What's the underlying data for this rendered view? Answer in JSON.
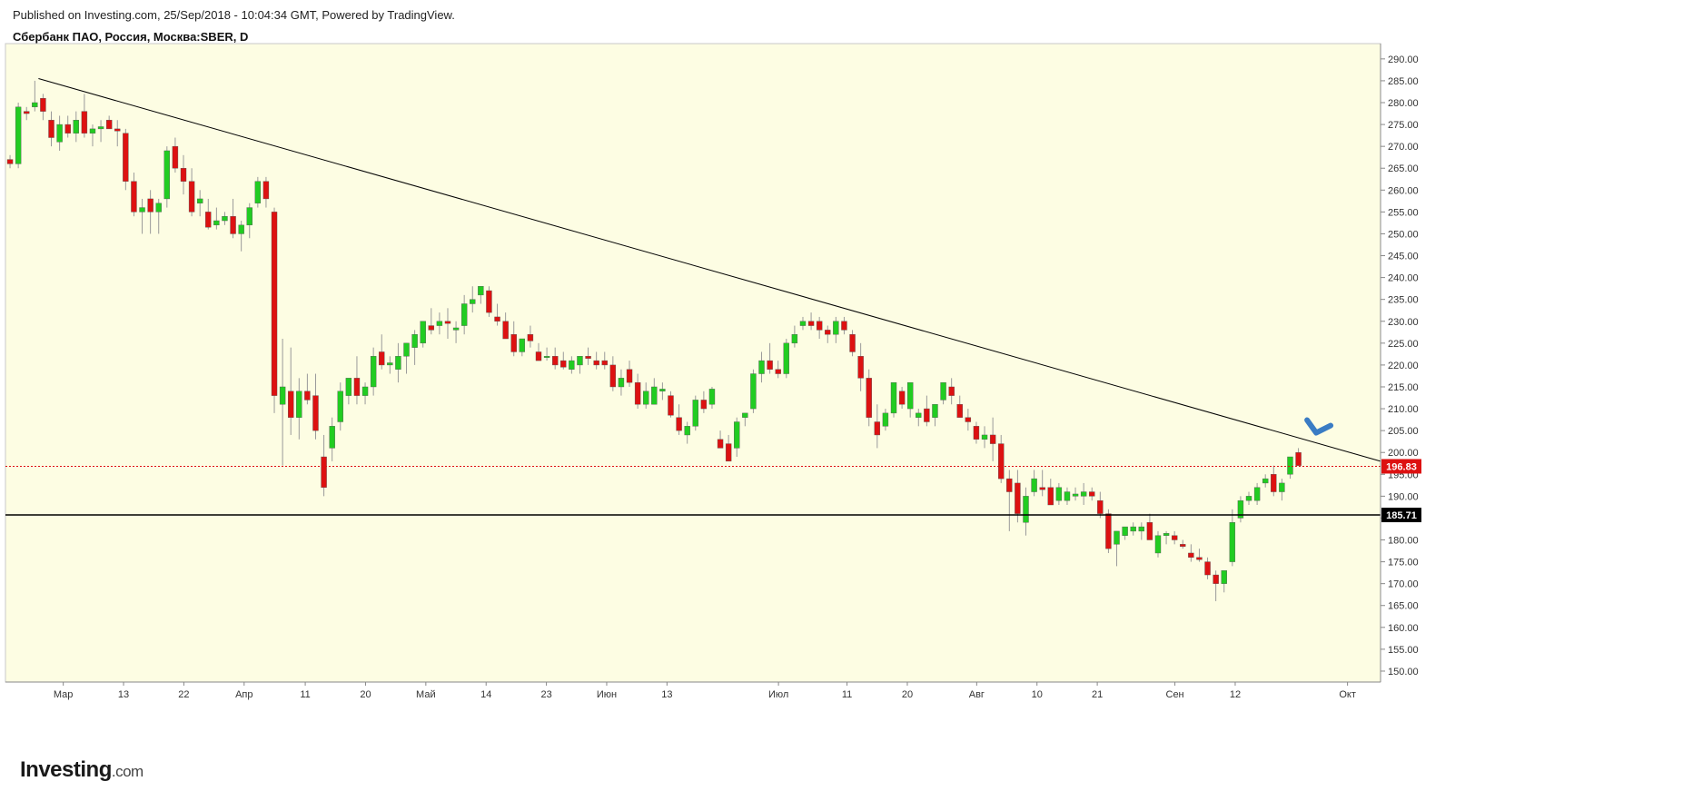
{
  "header": {
    "published": "Published on Investing.com, 25/Sep/2018 - 10:04:34 GMT, Powered by TradingView.",
    "instrument": "Сбербанк ПАО, Россия, Москва:SBER, D"
  },
  "logo": {
    "main": "Investing",
    "suffix": ".com"
  },
  "colors": {
    "background": "#fdfde3",
    "up": "#21cc21",
    "down": "#dd1111",
    "wick": "#9a9a9a",
    "trendline": "#000000",
    "current_price_line": "#dd1111",
    "support_line": "#000000",
    "arrow": "#3a7cc4"
  },
  "chart_data": {
    "type": "candlestick",
    "title": "Сбербанк ПАО, Россия, Москва:SBER, D",
    "ylim": [
      147.5,
      293.5
    ],
    "yticks": [
      150,
      155,
      160,
      165,
      170,
      175,
      180,
      185,
      190,
      195,
      200,
      205,
      210,
      215,
      220,
      225,
      230,
      235,
      240,
      245,
      250,
      255,
      260,
      265,
      270,
      275,
      280,
      285,
      290
    ],
    "ytick_labels": [
      "150.00",
      "155.00",
      "160.00",
      "165.00",
      "170.00",
      "175.00",
      "180.00",
      "185.00",
      "190.00",
      "195.00",
      "200.00",
      "205.00",
      "210.00",
      "215.00",
      "220.00",
      "225.00",
      "230.00",
      "235.00",
      "240.00",
      "245.00",
      "250.00",
      "255.00",
      "260.00",
      "265.00",
      "270.00",
      "275.00",
      "280.00",
      "285.00",
      "290.00"
    ],
    "xlim": [
      -0.5,
      166
    ],
    "xticks": [
      {
        "label": "Мар",
        "x": 6.5
      },
      {
        "label": "13",
        "x": 13.8
      },
      {
        "label": "22",
        "x": 21.1
      },
      {
        "label": "Апр",
        "x": 28.4
      },
      {
        "label": "11",
        "x": 35.8
      },
      {
        "label": "20",
        "x": 43.1
      },
      {
        "label": "Май",
        "x": 50.4
      },
      {
        "label": "14",
        "x": 57.7
      },
      {
        "label": "23",
        "x": 65.0
      },
      {
        "label": "Июн",
        "x": 72.3
      },
      {
        "label": "13",
        "x": 79.6
      },
      {
        "label": "Июл",
        "x": 93.1
      },
      {
        "label": "11",
        "x": 101.4
      },
      {
        "label": "20",
        "x": 108.7
      },
      {
        "label": "Авг",
        "x": 117.1
      },
      {
        "label": "10",
        "x": 124.4
      },
      {
        "label": "21",
        "x": 131.7
      },
      {
        "label": "Сен",
        "x": 141.1
      },
      {
        "label": "12",
        "x": 148.4
      },
      {
        "label": "Окт",
        "x": 162.0
      }
    ],
    "trendline": [
      [
        3.5,
        285.5
      ],
      [
        166,
        198.0
      ]
    ],
    "current_price": 196.83,
    "current_price_label": "196.83",
    "support": 185.71,
    "support_label": "185.71",
    "arrow_annotation": {
      "x": 158.2,
      "y": 204.5
    },
    "candles": [
      {
        "o": 267,
        "h": 268,
        "l": 265,
        "c": 266
      },
      {
        "o": 266,
        "h": 280,
        "l": 265,
        "c": 279
      },
      {
        "o": 278,
        "h": 279,
        "l": 276,
        "c": 277.5
      },
      {
        "o": 279,
        "h": 285,
        "l": 278,
        "c": 280
      },
      {
        "o": 281,
        "h": 282,
        "l": 276,
        "c": 278
      },
      {
        "o": 276,
        "h": 278,
        "l": 270,
        "c": 272
      },
      {
        "o": 271,
        "h": 277,
        "l": 269,
        "c": 275
      },
      {
        "o": 275,
        "h": 277,
        "l": 272,
        "c": 273
      },
      {
        "o": 273,
        "h": 278,
        "l": 271,
        "c": 276
      },
      {
        "o": 278,
        "h": 282,
        "l": 272,
        "c": 273
      },
      {
        "o": 273,
        "h": 275,
        "l": 270,
        "c": 274
      },
      {
        "o": 274,
        "h": 276,
        "l": 271,
        "c": 274.5
      },
      {
        "o": 276,
        "h": 277,
        "l": 274,
        "c": 274
      },
      {
        "o": 274,
        "h": 276,
        "l": 270,
        "c": 273.5
      },
      {
        "o": 273,
        "h": 274,
        "l": 260,
        "c": 262
      },
      {
        "o": 262,
        "h": 264,
        "l": 254,
        "c": 255
      },
      {
        "o": 255,
        "h": 258,
        "l": 250,
        "c": 256
      },
      {
        "o": 258,
        "h": 260,
        "l": 250,
        "c": 255
      },
      {
        "o": 255,
        "h": 258,
        "l": 250,
        "c": 257
      },
      {
        "o": 258,
        "h": 270,
        "l": 256,
        "c": 269
      },
      {
        "o": 270,
        "h": 272,
        "l": 264,
        "c": 265
      },
      {
        "o": 265,
        "h": 268,
        "l": 259,
        "c": 262
      },
      {
        "o": 262,
        "h": 265,
        "l": 254,
        "c": 255
      },
      {
        "o": 257,
        "h": 260,
        "l": 254,
        "c": 258
      },
      {
        "o": 255,
        "h": 258,
        "l": 251,
        "c": 251.5
      },
      {
        "o": 252,
        "h": 256,
        "l": 251,
        "c": 253
      },
      {
        "o": 253,
        "h": 255,
        "l": 252,
        "c": 254
      },
      {
        "o": 254,
        "h": 258,
        "l": 249,
        "c": 250
      },
      {
        "o": 250,
        "h": 253,
        "l": 246,
        "c": 252
      },
      {
        "o": 252,
        "h": 257,
        "l": 249,
        "c": 256
      },
      {
        "o": 257,
        "h": 263,
        "l": 256,
        "c": 262
      },
      {
        "o": 262,
        "h": 263,
        "l": 256,
        "c": 258
      },
      {
        "o": 255,
        "h": 256,
        "l": 209,
        "c": 213
      },
      {
        "o": 211,
        "h": 226,
        "l": 197,
        "c": 215
      },
      {
        "o": 214,
        "h": 224,
        "l": 204,
        "c": 208
      },
      {
        "o": 208,
        "h": 217,
        "l": 203,
        "c": 214
      },
      {
        "o": 214,
        "h": 218,
        "l": 211,
        "c": 212
      },
      {
        "o": 213,
        "h": 218,
        "l": 203,
        "c": 205
      },
      {
        "o": 199,
        "h": 204,
        "l": 190,
        "c": 192
      },
      {
        "o": 201,
        "h": 208,
        "l": 198,
        "c": 206
      },
      {
        "o": 207,
        "h": 216,
        "l": 205,
        "c": 214
      },
      {
        "o": 213,
        "h": 216,
        "l": 211,
        "c": 217
      },
      {
        "o": 217,
        "h": 222,
        "l": 211,
        "c": 213
      },
      {
        "o": 213,
        "h": 216,
        "l": 211,
        "c": 215
      },
      {
        "o": 215,
        "h": 224,
        "l": 213,
        "c": 222
      },
      {
        "o": 223,
        "h": 227,
        "l": 219,
        "c": 220
      },
      {
        "o": 220,
        "h": 222,
        "l": 218,
        "c": 220.5
      },
      {
        "o": 219,
        "h": 225,
        "l": 216,
        "c": 222
      },
      {
        "o": 222,
        "h": 225,
        "l": 218,
        "c": 225
      },
      {
        "o": 224,
        "h": 228,
        "l": 220,
        "c": 227
      },
      {
        "o": 225,
        "h": 230,
        "l": 224,
        "c": 230
      },
      {
        "o": 229,
        "h": 233,
        "l": 227,
        "c": 228
      },
      {
        "o": 229,
        "h": 232,
        "l": 227,
        "c": 230
      },
      {
        "o": 230,
        "h": 233,
        "l": 226,
        "c": 229.5
      },
      {
        "o": 228,
        "h": 230,
        "l": 225,
        "c": 228.5
      },
      {
        "o": 229,
        "h": 236,
        "l": 227,
        "c": 234
      },
      {
        "o": 234,
        "h": 238,
        "l": 232,
        "c": 235
      },
      {
        "o": 236,
        "h": 238,
        "l": 234,
        "c": 238
      },
      {
        "o": 237,
        "h": 238,
        "l": 231,
        "c": 232
      },
      {
        "o": 231,
        "h": 234,
        "l": 229,
        "c": 230
      },
      {
        "o": 230,
        "h": 232,
        "l": 226,
        "c": 226
      },
      {
        "o": 227,
        "h": 230,
        "l": 222,
        "c": 223
      },
      {
        "o": 223,
        "h": 226,
        "l": 222,
        "c": 226
      },
      {
        "o": 227,
        "h": 229,
        "l": 224,
        "c": 225.5
      },
      {
        "o": 223,
        "h": 225,
        "l": 221,
        "c": 221
      },
      {
        "o": 222,
        "h": 224,
        "l": 221,
        "c": 222
      },
      {
        "o": 222,
        "h": 224,
        "l": 219,
        "c": 220
      },
      {
        "o": 221,
        "h": 223,
        "l": 219,
        "c": 219.5
      },
      {
        "o": 219,
        "h": 222,
        "l": 218,
        "c": 221
      },
      {
        "o": 220,
        "h": 222,
        "l": 218,
        "c": 222
      },
      {
        "o": 222,
        "h": 224,
        "l": 220,
        "c": 221.5
      },
      {
        "o": 221,
        "h": 223,
        "l": 219,
        "c": 220
      },
      {
        "o": 221,
        "h": 223,
        "l": 219,
        "c": 220
      },
      {
        "o": 220,
        "h": 222,
        "l": 214,
        "c": 215
      },
      {
        "o": 215,
        "h": 219,
        "l": 213,
        "c": 217
      },
      {
        "o": 219,
        "h": 221,
        "l": 215,
        "c": 216
      },
      {
        "o": 216,
        "h": 218,
        "l": 210,
        "c": 211
      },
      {
        "o": 211,
        "h": 216,
        "l": 210,
        "c": 214
      },
      {
        "o": 211,
        "h": 217,
        "l": 211,
        "c": 215
      },
      {
        "o": 214,
        "h": 216,
        "l": 212,
        "c": 214.5
      },
      {
        "o": 213,
        "h": 214,
        "l": 208,
        "c": 208.5
      },
      {
        "o": 208,
        "h": 211,
        "l": 204,
        "c": 205
      },
      {
        "o": 204,
        "h": 207,
        "l": 202,
        "c": 206
      },
      {
        "o": 206,
        "h": 213,
        "l": 205,
        "c": 212
      },
      {
        "o": 212,
        "h": 214,
        "l": 209,
        "c": 210
      },
      {
        "o": 211,
        "h": 215,
        "l": 210,
        "c": 214.5
      },
      {
        "o": 203,
        "h": 205,
        "l": 201,
        "c": 201
      },
      {
        "o": 202,
        "h": 204,
        "l": 198,
        "c": 198
      },
      {
        "o": 201,
        "h": 208,
        "l": 199,
        "c": 207
      },
      {
        "o": 208,
        "h": 209,
        "l": 206,
        "c": 209
      },
      {
        "o": 210,
        "h": 219,
        "l": 209,
        "c": 218
      },
      {
        "o": 218,
        "h": 223,
        "l": 216,
        "c": 221
      },
      {
        "o": 221,
        "h": 225,
        "l": 218,
        "c": 219
      },
      {
        "o": 219,
        "h": 221,
        "l": 217,
        "c": 218
      },
      {
        "o": 218,
        "h": 226,
        "l": 217,
        "c": 225
      },
      {
        "o": 225,
        "h": 229,
        "l": 224,
        "c": 227
      },
      {
        "o": 229,
        "h": 231,
        "l": 228,
        "c": 230
      },
      {
        "o": 230,
        "h": 232,
        "l": 228,
        "c": 229
      },
      {
        "o": 230,
        "h": 231,
        "l": 226,
        "c": 228
      },
      {
        "o": 228,
        "h": 229,
        "l": 225,
        "c": 227
      },
      {
        "o": 227,
        "h": 231,
        "l": 225,
        "c": 230
      },
      {
        "o": 230,
        "h": 231,
        "l": 227,
        "c": 228
      },
      {
        "o": 227,
        "h": 228,
        "l": 222,
        "c": 223
      },
      {
        "o": 222,
        "h": 225,
        "l": 214,
        "c": 217
      },
      {
        "o": 217,
        "h": 219,
        "l": 206,
        "c": 208
      },
      {
        "o": 207,
        "h": 211,
        "l": 201,
        "c": 204
      },
      {
        "o": 206,
        "h": 210,
        "l": 205,
        "c": 209
      },
      {
        "o": 209,
        "h": 216,
        "l": 208,
        "c": 216
      },
      {
        "o": 214,
        "h": 215,
        "l": 210,
        "c": 211
      },
      {
        "o": 210,
        "h": 216,
        "l": 208,
        "c": 216
      },
      {
        "o": 208,
        "h": 210,
        "l": 206,
        "c": 209
      },
      {
        "o": 210,
        "h": 213,
        "l": 206,
        "c": 207
      },
      {
        "o": 208,
        "h": 211,
        "l": 206,
        "c": 211
      },
      {
        "o": 212,
        "h": 216,
        "l": 211,
        "c": 216
      },
      {
        "o": 215,
        "h": 217,
        "l": 211,
        "c": 213
      },
      {
        "o": 211,
        "h": 213,
        "l": 208,
        "c": 208
      },
      {
        "o": 208,
        "h": 210,
        "l": 205,
        "c": 207
      },
      {
        "o": 206,
        "h": 207,
        "l": 202,
        "c": 203
      },
      {
        "o": 203,
        "h": 206,
        "l": 201,
        "c": 204
      },
      {
        "o": 204,
        "h": 208,
        "l": 198,
        "c": 202
      },
      {
        "o": 202,
        "h": 204,
        "l": 193,
        "c": 194
      },
      {
        "o": 194,
        "h": 196,
        "l": 182,
        "c": 191
      },
      {
        "o": 193,
        "h": 196,
        "l": 184,
        "c": 186
      },
      {
        "o": 184,
        "h": 192,
        "l": 181,
        "c": 190
      },
      {
        "o": 191,
        "h": 196,
        "l": 190,
        "c": 194
      },
      {
        "o": 192,
        "h": 196,
        "l": 190,
        "c": 191.5
      },
      {
        "o": 192,
        "h": 194,
        "l": 188,
        "c": 188
      },
      {
        "o": 189,
        "h": 193,
        "l": 188,
        "c": 192
      },
      {
        "o": 189,
        "h": 192,
        "l": 188,
        "c": 191
      },
      {
        "o": 190,
        "h": 192,
        "l": 189,
        "c": 190.5
      },
      {
        "o": 190,
        "h": 193,
        "l": 188,
        "c": 191
      },
      {
        "o": 191,
        "h": 192,
        "l": 189,
        "c": 190
      },
      {
        "o": 189,
        "h": 191,
        "l": 185,
        "c": 186
      },
      {
        "o": 186,
        "h": 187,
        "l": 177,
        "c": 178
      },
      {
        "o": 179,
        "h": 182,
        "l": 174,
        "c": 182
      },
      {
        "o": 181,
        "h": 183,
        "l": 180,
        "c": 183
      },
      {
        "o": 182,
        "h": 184,
        "l": 181,
        "c": 183
      },
      {
        "o": 182,
        "h": 184,
        "l": 180,
        "c": 183
      },
      {
        "o": 184,
        "h": 186,
        "l": 180,
        "c": 180
      },
      {
        "o": 177,
        "h": 182,
        "l": 176,
        "c": 181
      },
      {
        "o": 181,
        "h": 182,
        "l": 179,
        "c": 181.5
      },
      {
        "o": 181,
        "h": 182,
        "l": 179,
        "c": 180
      },
      {
        "o": 179,
        "h": 180,
        "l": 178,
        "c": 178.5
      },
      {
        "o": 177,
        "h": 179,
        "l": 175,
        "c": 176
      },
      {
        "o": 176,
        "h": 178,
        "l": 175,
        "c": 175.5
      },
      {
        "o": 175,
        "h": 176,
        "l": 171,
        "c": 172
      },
      {
        "o": 172,
        "h": 173,
        "l": 166,
        "c": 170
      },
      {
        "o": 170,
        "h": 172,
        "l": 168,
        "c": 173
      },
      {
        "o": 175,
        "h": 187,
        "l": 174,
        "c": 184
      },
      {
        "o": 185,
        "h": 190,
        "l": 184,
        "c": 189
      },
      {
        "o": 189,
        "h": 191,
        "l": 188,
        "c": 190
      },
      {
        "o": 189,
        "h": 193,
        "l": 188,
        "c": 192
      },
      {
        "o": 193,
        "h": 195,
        "l": 192,
        "c": 194
      },
      {
        "o": 195,
        "h": 197,
        "l": 190,
        "c": 191
      },
      {
        "o": 191,
        "h": 194,
        "l": 189,
        "c": 193
      },
      {
        "o": 195,
        "h": 199,
        "l": 194,
        "c": 199
      },
      {
        "o": 200,
        "h": 201,
        "l": 197,
        "c": 197
      }
    ]
  }
}
